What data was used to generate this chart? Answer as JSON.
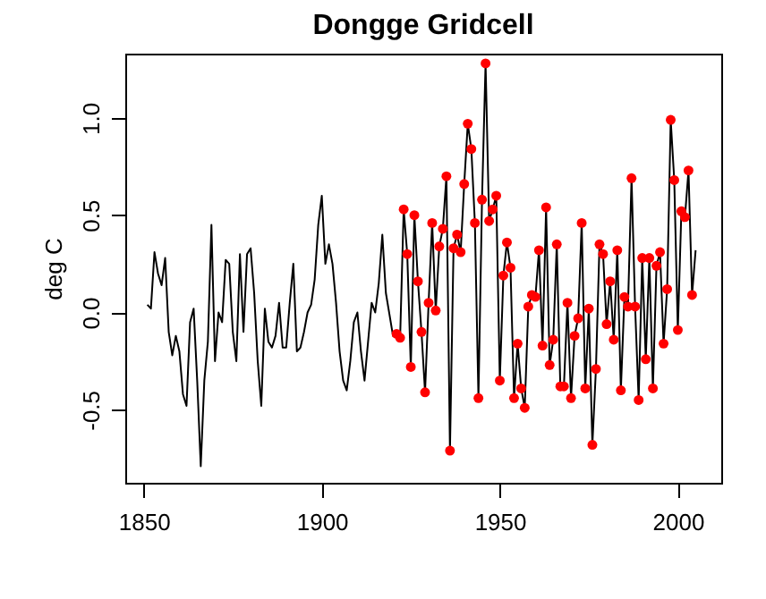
{
  "chart_data": {
    "type": "line",
    "title": "Dongge Gridcell",
    "ylabel": "deg C",
    "xlim": [
      1844.8,
      2012.2
    ],
    "ylim": [
      -0.875,
      1.33
    ],
    "xticks": [
      1850,
      1900,
      1950,
      2000
    ],
    "yticks": [
      -0.5,
      {
        "value": 0,
        "label": "0.0"
      },
      0.5,
      {
        "value": 1,
        "label": "1.0"
      }
    ],
    "grid": false,
    "series": [
      {
        "color": "#000000",
        "marker": "none",
        "line_style": "solid",
        "x": [
          1851,
          1852,
          1853,
          1854,
          1855,
          1856,
          1857,
          1858,
          1859,
          1860,
          1861,
          1862,
          1863,
          1864,
          1865,
          1866,
          1867,
          1868,
          1869,
          1870,
          1871,
          1872,
          1873,
          1874,
          1875,
          1876,
          1877,
          1878,
          1879,
          1880,
          1881,
          1882,
          1883,
          1884,
          1885,
          1886,
          1887,
          1888,
          1889,
          1890,
          1891,
          1892,
          1893,
          1894,
          1895,
          1896,
          1897,
          1898,
          1899,
          1900,
          1901,
          1902,
          1903,
          1904,
          1905,
          1906,
          1907,
          1908,
          1909,
          1910,
          1911,
          1912,
          1913,
          1914,
          1915,
          1916,
          1917,
          1918,
          1919,
          1920,
          1921,
          1922,
          1923,
          1924,
          1925,
          1926,
          1927,
          1928,
          1929,
          1930,
          1931,
          1932,
          1933,
          1934,
          1935,
          1936,
          1937,
          1938,
          1939,
          1940,
          1941,
          1942,
          1943,
          1944,
          1945,
          1946,
          1947,
          1948,
          1949,
          1950,
          1951,
          1952,
          1953,
          1954,
          1955,
          1956,
          1957,
          1958,
          1959,
          1960,
          1961,
          1962,
          1963,
          1964,
          1965,
          1966,
          1967,
          1968,
          1969,
          1970,
          1971,
          1972,
          1973,
          1974,
          1975,
          1976,
          1977,
          1978,
          1979,
          1980,
          1981,
          1982,
          1983,
          1984,
          1985,
          1986,
          1987,
          1988,
          1989,
          1990,
          1991,
          1992,
          1993,
          1994,
          1995,
          1996,
          1997,
          1998,
          1999,
          2000,
          2001,
          2002,
          2003,
          2004,
          2005
        ],
        "values": [
          0.04,
          0.02,
          0.31,
          0.2,
          0.14,
          0.28,
          -0.1,
          -0.22,
          -0.12,
          -0.2,
          -0.42,
          -0.48,
          -0.05,
          0.02,
          -0.35,
          -0.79,
          -0.35,
          -0.15,
          0.45,
          -0.25,
          0.0,
          -0.05,
          0.27,
          0.25,
          -0.1,
          -0.25,
          0.3,
          -0.1,
          0.3,
          0.33,
          0.1,
          -0.25,
          -0.48,
          0.02,
          -0.15,
          -0.18,
          -0.12,
          0.05,
          -0.18,
          -0.18,
          0.05,
          0.25,
          -0.2,
          -0.18,
          -0.1,
          0.0,
          0.04,
          0.17,
          0.45,
          0.6,
          0.25,
          0.35,
          0.25,
          0.05,
          -0.2,
          -0.35,
          -0.4,
          -0.25,
          -0.05,
          0.0,
          -0.2,
          -0.35,
          -0.15,
          0.05,
          0.0,
          0.15,
          0.4,
          0.1,
          -0.01,
          -0.12,
          -0.11,
          -0.13,
          0.53,
          0.3,
          -0.28,
          0.5,
          0.16,
          -0.1,
          -0.41,
          0.05,
          0.46,
          0.01,
          0.34,
          0.43,
          0.7,
          -0.71,
          0.33,
          0.4,
          0.31,
          0.66,
          0.97,
          0.84,
          0.46,
          -0.44,
          0.58,
          1.28,
          0.47,
          0.53,
          0.6,
          -0.35,
          0.19,
          0.36,
          0.23,
          -0.44,
          -0.16,
          -0.39,
          -0.49,
          0.03,
          0.09,
          0.08,
          0.32,
          -0.17,
          0.54,
          -0.27,
          -0.14,
          0.35,
          -0.38,
          -0.38,
          0.05,
          -0.44,
          -0.12,
          -0.03,
          0.46,
          -0.39,
          0.02,
          -0.68,
          -0.29,
          0.35,
          0.3,
          -0.06,
          0.16,
          -0.14,
          0.32,
          -0.4,
          0.08,
          0.03,
          0.69,
          0.03,
          -0.45,
          0.28,
          -0.24,
          0.28,
          -0.39,
          0.24,
          0.31,
          -0.16,
          0.12,
          0.99,
          0.68,
          -0.09,
          0.52,
          0.49,
          0.73,
          0.09,
          0.32
        ]
      },
      {
        "type": "scatter",
        "color": "#ff0000",
        "marker": "circle",
        "x": [
          1921,
          1922,
          1923,
          1924,
          1925,
          1926,
          1927,
          1928,
          1929,
          1930,
          1931,
          1932,
          1933,
          1934,
          1935,
          1936,
          1937,
          1938,
          1939,
          1940,
          1941,
          1942,
          1943,
          1944,
          1945,
          1946,
          1947,
          1948,
          1949,
          1950,
          1951,
          1952,
          1953,
          1954,
          1955,
          1956,
          1957,
          1958,
          1959,
          1960,
          1961,
          1962,
          1963,
          1964,
          1965,
          1966,
          1967,
          1968,
          1969,
          1970,
          1971,
          1972,
          1973,
          1974,
          1975,
          1976,
          1977,
          1978,
          1979,
          1980,
          1981,
          1982,
          1983,
          1984,
          1985,
          1986,
          1987,
          1988,
          1989,
          1990,
          1991,
          1992,
          1993,
          1994,
          1995,
          1996,
          1997,
          1998,
          1999,
          2000,
          2001,
          2002,
          2003,
          2004
        ],
        "values": [
          -0.11,
          -0.13,
          0.53,
          0.3,
          -0.28,
          0.5,
          0.16,
          -0.1,
          -0.41,
          0.05,
          0.46,
          0.01,
          0.34,
          0.43,
          0.7,
          -0.71,
          0.33,
          0.4,
          0.31,
          0.66,
          0.97,
          0.84,
          0.46,
          -0.44,
          0.58,
          1.28,
          0.47,
          0.53,
          0.6,
          -0.35,
          0.19,
          0.36,
          0.23,
          -0.44,
          -0.16,
          -0.39,
          -0.49,
          0.03,
          0.09,
          0.08,
          0.32,
          -0.17,
          0.54,
          -0.27,
          -0.14,
          0.35,
          -0.38,
          -0.38,
          0.05,
          -0.44,
          -0.12,
          -0.03,
          0.46,
          -0.39,
          0.02,
          -0.68,
          -0.29,
          0.35,
          0.3,
          -0.06,
          0.16,
          -0.14,
          0.32,
          -0.4,
          0.08,
          0.03,
          0.69,
          0.03,
          -0.45,
          0.28,
          -0.24,
          0.28,
          -0.39,
          0.24,
          0.31,
          -0.16,
          0.12,
          0.99,
          0.68,
          -0.09,
          0.52,
          0.49,
          0.73,
          0.09
        ]
      }
    ]
  }
}
